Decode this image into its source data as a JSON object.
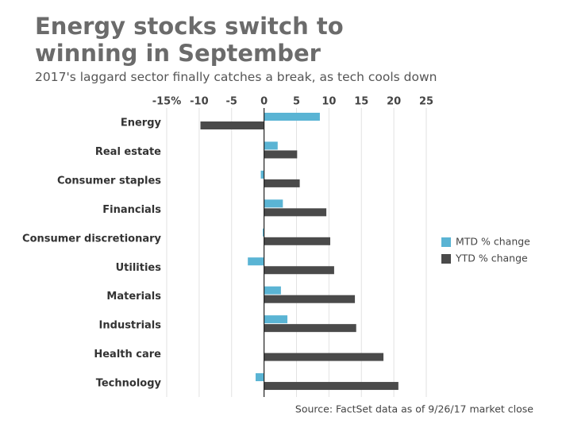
{
  "chart_data": {
    "type": "hbar",
    "title": "Energy stocks switch to winning in September",
    "subtitle": "2017's laggard sector finally catches a break, as tech cools down",
    "source": "Source: FactSet data as of 9/26/17 market close",
    "categories": [
      "Energy",
      "Real estate",
      "Consumer staples",
      "Financials",
      "Consumer discretionary",
      "Utilities",
      "Materials",
      "Industrials",
      "Health care",
      "Technology"
    ],
    "series": [
      {
        "name": "MTD % change",
        "color": "#5ab4d4",
        "values": [
          8.6,
          2.1,
          -0.5,
          2.9,
          -0.2,
          -2.5,
          2.6,
          3.6,
          0,
          -1.3
        ]
      },
      {
        "name": "YTD % change",
        "color": "#4a4a4a",
        "values": [
          -9.8,
          5.1,
          5.5,
          9.6,
          10.2,
          10.8,
          14.0,
          14.2,
          18.4,
          20.7
        ]
      }
    ],
    "xlim": [
      -15,
      25
    ],
    "xticks": [
      {
        "value": -15,
        "label": "-15%"
      },
      -10,
      -5,
      0,
      5,
      10,
      15,
      20,
      25
    ],
    "grid": true,
    "legend": "right"
  }
}
